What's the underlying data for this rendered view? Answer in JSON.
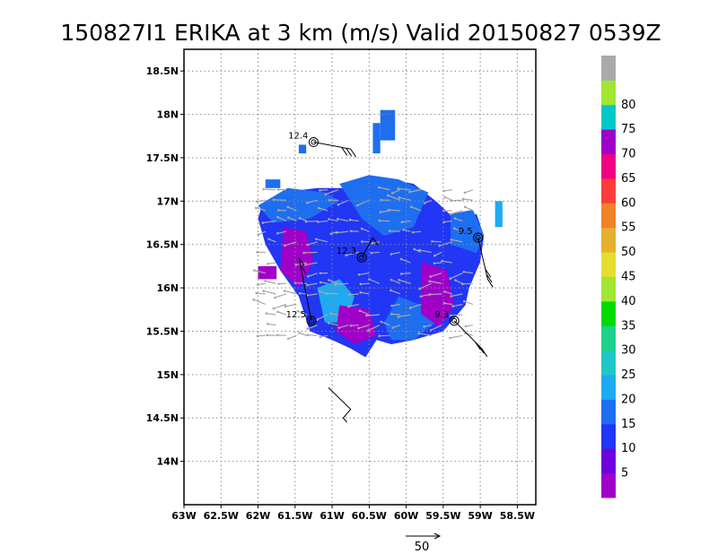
{
  "title": "150827I1 ERIKA at 3 km (m/s) Valid 20150827 0539Z",
  "map": {
    "lon_min": -63.0,
    "lon_max": -58.25,
    "lat_min": 13.5,
    "lat_max": 18.75,
    "x_ticks": [
      {
        "lon": -63.0,
        "label": "63W"
      },
      {
        "lon": -62.5,
        "label": "62.5W"
      },
      {
        "lon": -62.0,
        "label": "62W"
      },
      {
        "lon": -61.5,
        "label": "61.5W"
      },
      {
        "lon": -61.0,
        "label": "61W"
      },
      {
        "lon": -60.5,
        "label": "60.5W"
      },
      {
        "lon": -60.0,
        "label": "60W"
      },
      {
        "lon": -59.5,
        "label": "59.5W"
      },
      {
        "lon": -59.0,
        "label": "59W"
      },
      {
        "lon": -58.5,
        "label": "58.5W"
      }
    ],
    "y_ticks": [
      {
        "lat": 14.0,
        "label": "14N"
      },
      {
        "lat": 14.5,
        "label": "14.5N"
      },
      {
        "lat": 15.0,
        "label": "15N"
      },
      {
        "lat": 15.5,
        "label": "15.5N"
      },
      {
        "lat": 16.0,
        "label": "16N"
      },
      {
        "lat": 16.5,
        "label": "16.5N"
      },
      {
        "lat": 17.0,
        "label": "17N"
      },
      {
        "lat": 17.5,
        "label": "17.5N"
      },
      {
        "lat": 18.0,
        "label": "18N"
      },
      {
        "lat": 18.5,
        "label": "18.5N"
      }
    ],
    "grid": true
  },
  "colorbar": {
    "levels": [
      "5",
      "10",
      "15",
      "20",
      "25",
      "30",
      "35",
      "40",
      "45",
      "50",
      "55",
      "60",
      "65",
      "70",
      "75",
      "80"
    ],
    "colors": [
      "#a000c8",
      "#6e00dc",
      "#2236f5",
      "#1e6ef0",
      "#1eaaf0",
      "#1ec8c8",
      "#1ed28c",
      "#00dc00",
      "#a0e632",
      "#e6dc32",
      "#e6af2d",
      "#f08228",
      "#fa3c3c",
      "#f00082",
      "#a000c8",
      "#00c8c8",
      "#a0e632",
      "#aaaaaa"
    ]
  },
  "observations": [
    {
      "label": "12.4",
      "lon": -61.25,
      "lat": 17.68
    },
    {
      "label": "12.3",
      "lon": -60.6,
      "lat": 16.35
    },
    {
      "label": "9.5",
      "lon": -59.03,
      "lat": 16.58
    },
    {
      "label": "12.5",
      "lon": -61.28,
      "lat": 15.62
    },
    {
      "label": "9.3",
      "lon": -59.35,
      "lat": 15.62
    }
  ],
  "reference_vector": {
    "label": "50"
  }
}
